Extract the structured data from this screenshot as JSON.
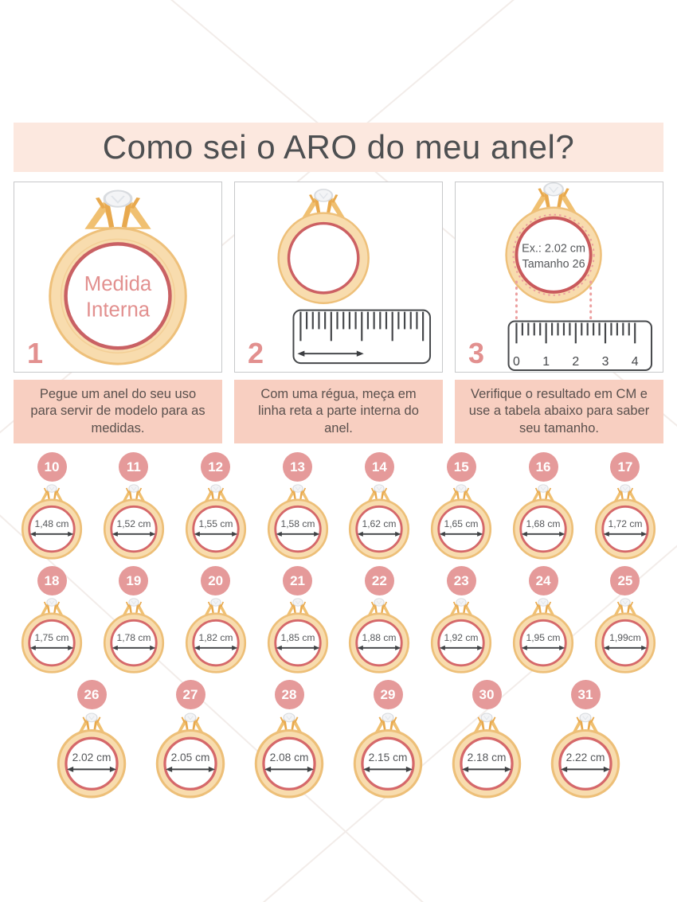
{
  "title": "Como sei o ARO do meu anel?",
  "steps": [
    {
      "number": "1",
      "caption": "Pegue um anel do seu uso para servir de modelo para as medidas.",
      "ring_text_line1": "Medida",
      "ring_text_line2": "Interna"
    },
    {
      "number": "2",
      "caption": "Com uma régua, meça em linha reta a parte interna do anel."
    },
    {
      "number": "3",
      "caption": "Verifique o resultado em CM e use a tabela abaixo para saber seu tamanho.",
      "example_line1": "Ex.: 2.02 cm",
      "example_line2": "Tamanho 26",
      "ruler_numbers": [
        "0",
        "1",
        "2",
        "3",
        "4"
      ]
    }
  ],
  "ring_table": {
    "rows": [
      [
        {
          "size": "10",
          "label": "1,48 cm"
        },
        {
          "size": "11",
          "label": "1,52 cm"
        },
        {
          "size": "12",
          "label": "1,55 cm"
        },
        {
          "size": "13",
          "label": "1,58 cm"
        },
        {
          "size": "14",
          "label": "1,62 cm"
        },
        {
          "size": "15",
          "label": "1,65 cm"
        },
        {
          "size": "16",
          "label": "1,68 cm"
        },
        {
          "size": "17",
          "label": "1,72 cm"
        }
      ],
      [
        {
          "size": "18",
          "label": "1,75 cm"
        },
        {
          "size": "19",
          "label": "1,78 cm"
        },
        {
          "size": "20",
          "label": "1,82 cm"
        },
        {
          "size": "21",
          "label": "1,85 cm"
        },
        {
          "size": "22",
          "label": "1,88 cm"
        },
        {
          "size": "23",
          "label": "1,92 cm"
        },
        {
          "size": "24",
          "label": "1,95 cm"
        },
        {
          "size": "25",
          "label": "1,99cm"
        }
      ],
      [
        {
          "size": "26",
          "label": "2.02 cm"
        },
        {
          "size": "27",
          "label": "2.05 cm"
        },
        {
          "size": "28",
          "label": "2.08 cm"
        },
        {
          "size": "29",
          "label": "2.15 cm"
        },
        {
          "size": "30",
          "label": "2.18 cm"
        },
        {
          "size": "31",
          "label": "2.22 cm"
        }
      ]
    ]
  },
  "colors": {
    "header_band_bg": "#fce8df",
    "caption_band_bg": "#f8cfc1",
    "accent_pink": "#e59a9a",
    "step_number_pink": "#e2908f",
    "ring_gold_fill": "#f8dcae",
    "ring_gold_stroke": "#eec07a",
    "inner_ring_red": "#d5686a",
    "text_dark": "#4d4f51"
  }
}
